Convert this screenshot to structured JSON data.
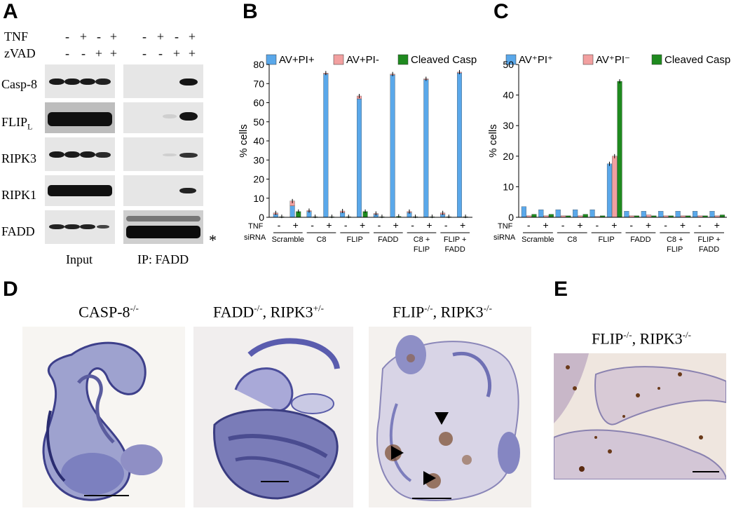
{
  "panelA": {
    "letter": "A",
    "rows": [
      {
        "label": "TNF",
        "signs": [
          "-",
          "+",
          "-",
          "+",
          "-",
          "+",
          "-",
          "+"
        ]
      },
      {
        "label": "zVAD",
        "signs": [
          "-",
          "-",
          "+",
          "+",
          "-",
          "-",
          "+",
          "+"
        ]
      }
    ],
    "blot_labels": [
      "Casp-8",
      "FLIP",
      "RIPK3",
      "RIPK1",
      "FADD"
    ],
    "flip_sub": "L",
    "input_label": "Input",
    "ip_label": "IP: FADD",
    "asterisk": "*"
  },
  "panelB": {
    "letter": "B"
  },
  "panelC": {
    "letter": "C"
  },
  "panelD": {
    "letter": "D",
    "titles": [
      {
        "base": "CASP-8",
        "sup": "-/-",
        "base2": "",
        "sup2": ""
      },
      {
        "base": "FADD",
        "sup": "-/-",
        "base2": ", RIPK3",
        "sup2": "+/-"
      },
      {
        "base": "FLIP",
        "sup": "-/-",
        "base2": ", RIPK3",
        "sup2": "-/-"
      }
    ]
  },
  "panelE": {
    "letter": "E",
    "title": {
      "base": "FLIP",
      "sup": "-/-",
      "base2": ", RIPK3",
      "sup2": "-/-"
    }
  },
  "colors": {
    "av_pi_pos": "#5aa8ea",
    "av_pi_neg": "#f2a0a0",
    "cleaved_casp3": "#1f8a1f"
  },
  "chart_data": [
    {
      "type": "bar",
      "panel": "B",
      "ylabel": "% cells",
      "ylim": [
        0,
        80
      ],
      "yticks": [
        0,
        10,
        20,
        30,
        40,
        50,
        60,
        70,
        80
      ],
      "legend": [
        "AV+PI+",
        "AV+PI-",
        "Cleaved Casp3"
      ],
      "legend_position": "top",
      "tnf_label": "TNF",
      "sirna_label": "siRNA",
      "tnf": [
        "-",
        "+",
        "-",
        "+",
        "-",
        "+",
        "-",
        "+",
        "-",
        "+",
        "-",
        "+"
      ],
      "groups": [
        "Scramble",
        "C8",
        "FLIP",
        "FADD",
        "C8 +\nFLIP",
        "FLIP +\nFADD"
      ],
      "series": [
        {
          "name": "AV+PI+",
          "values": [
            1.5,
            6,
            3,
            75,
            2.5,
            62,
            1.5,
            74.5,
            2.5,
            72,
            1.5,
            75.5
          ]
        },
        {
          "name": "AV+PI-",
          "values": [
            0.8,
            2.5,
            0.5,
            0.5,
            0.8,
            1.5,
            0.5,
            0.5,
            0.5,
            0.5,
            0.8,
            0.5
          ]
        },
        {
          "name": "Cleaved Casp3",
          "values": [
            0.3,
            3,
            0.3,
            0.3,
            0.3,
            3,
            0.3,
            0.5,
            0.3,
            0.3,
            0.3,
            0.3
          ]
        }
      ]
    },
    {
      "type": "bar",
      "panel": "C",
      "ylabel": "% cells",
      "ylim": [
        0,
        50
      ],
      "yticks": [
        0,
        10,
        20,
        30,
        40,
        50
      ],
      "legend": [
        "AV⁺PI⁺",
        "AV⁺PI⁻",
        "Cleaved Casp3"
      ],
      "legend_position": "top",
      "tnf_label": "TNF",
      "sirna_label": "siRNA",
      "tnf": [
        "-",
        "+",
        "-",
        "+",
        "-",
        "+",
        "-",
        "+",
        "-",
        "+",
        "-",
        "+"
      ],
      "groups": [
        "Scramble",
        "C8",
        "FLIP",
        "FADD",
        "C8 +\nFLIP",
        "FLIP +\nFADD"
      ],
      "series": [
        {
          "name": "AV⁺PI⁺",
          "values": [
            3.5,
            2.5,
            2.5,
            2.5,
            2.5,
            17.5,
            2,
            2,
            2,
            2,
            2,
            2
          ]
        },
        {
          "name": "AV⁺PI⁻",
          "values": [
            0.5,
            0.5,
            0.5,
            0.5,
            0.3,
            20,
            0.5,
            0.8,
            0.5,
            0.5,
            0.5,
            0.5
          ]
        },
        {
          "name": "Cleaved Casp3",
          "values": [
            1,
            1,
            0.5,
            1,
            0.5,
            44.5,
            0.5,
            0.5,
            0.5,
            0.5,
            0.5,
            0.8
          ]
        }
      ]
    }
  ]
}
